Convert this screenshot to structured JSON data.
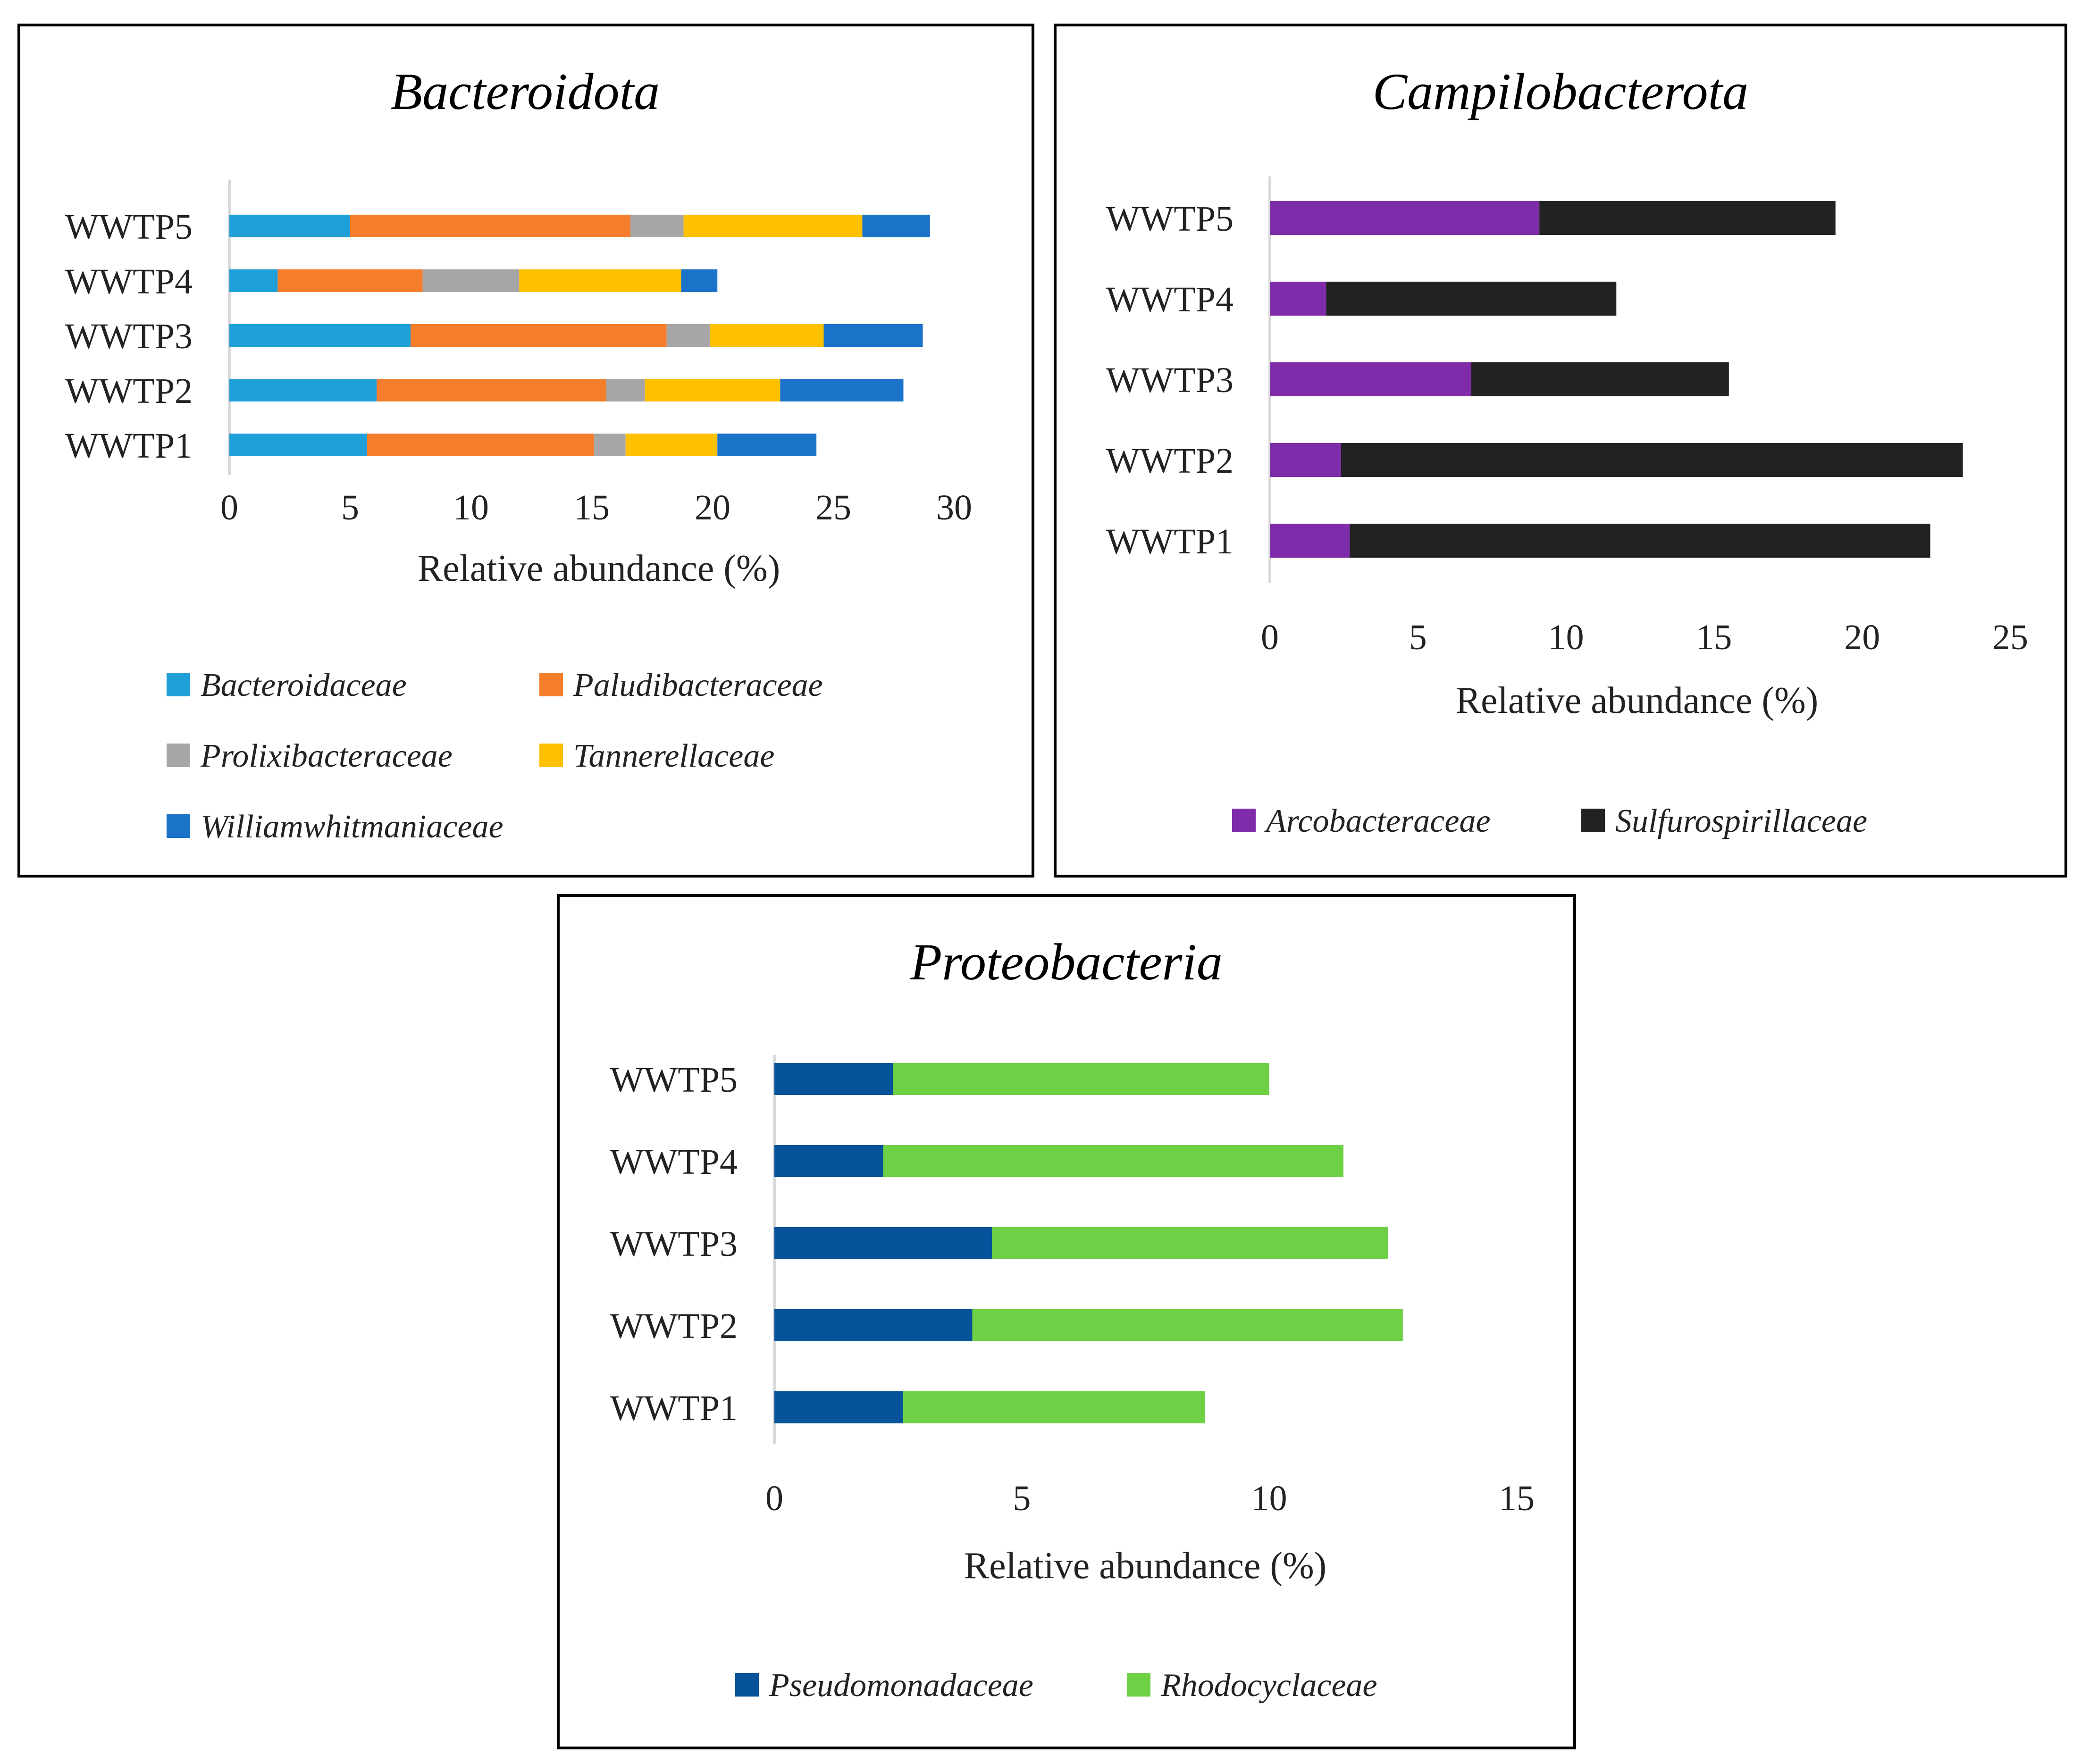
{
  "chart_data": [
    {
      "type": "bar",
      "orientation": "horizontal",
      "stacked": true,
      "title": "Bacteroidota",
      "categories": [
        "WWTP1",
        "WWTP2",
        "WWTP3",
        "WWTP4",
        "WWTP5"
      ],
      "series": [
        {
          "name": "Bacteroidaceae",
          "color": "#1f9fd8",
          "values": [
            5.7,
            6.1,
            7.5,
            2.0,
            5.0
          ]
        },
        {
          "name": "Paludibacteraceae",
          "color": "#f57e2c",
          "values": [
            9.4,
            9.5,
            10.6,
            6.0,
            11.6
          ]
        },
        {
          "name": "Prolixibacteraceae",
          "color": "#a6a6a6",
          "values": [
            1.3,
            1.6,
            1.8,
            4.0,
            2.2
          ]
        },
        {
          "name": "Tannerellaceae",
          "color": "#ffc000",
          "values": [
            3.8,
            5.6,
            4.7,
            6.7,
            7.4
          ]
        },
        {
          "name": "Williamwhitmaniaceae",
          "color": "#1a72c9",
          "values": [
            4.1,
            5.1,
            4.1,
            1.5,
            2.8
          ]
        }
      ],
      "xlabel": "Relative abundance (%)",
      "xlim": [
        0,
        30
      ],
      "xticks": [
        "0",
        "5",
        "10",
        "15",
        "20",
        "25",
        "30"
      ],
      "legend_position": "bottom"
    },
    {
      "type": "bar",
      "orientation": "horizontal",
      "stacked": true,
      "title": "Campilobacterota",
      "categories": [
        "WWTP1",
        "WWTP2",
        "WWTP3",
        "WWTP4",
        "WWTP5"
      ],
      "series": [
        {
          "name": "Arcobacteraceae",
          "color": "#7e2ca9",
          "values": [
            2.7,
            2.4,
            6.8,
            1.9,
            9.1
          ]
        },
        {
          "name": "Sulfurospirillaceae",
          "color": "#222222",
          "values": [
            19.6,
            21.0,
            8.7,
            9.8,
            10.0
          ]
        }
      ],
      "xlabel": "Relative abundance (%)",
      "xlim": [
        0,
        25
      ],
      "xticks": [
        "0",
        "5",
        "10",
        "15",
        "20",
        "25"
      ],
      "legend_position": "bottom"
    },
    {
      "type": "bar",
      "orientation": "horizontal",
      "stacked": true,
      "title": "Proteobacteria",
      "categories": [
        "WWTP1",
        "WWTP2",
        "WWTP3",
        "WWTP4",
        "WWTP5"
      ],
      "series": [
        {
          "name": "Pseudomonadaceae",
          "color": "#07539a",
          "values": [
            2.6,
            4.0,
            4.4,
            2.2,
            2.4
          ]
        },
        {
          "name": "Rhodocyclaceae",
          "color": "#6ed145",
          "values": [
            6.1,
            8.7,
            8.0,
            9.3,
            7.6
          ]
        }
      ],
      "xlabel": "Relative abundance (%)",
      "xlim": [
        0,
        15
      ],
      "xticks": [
        "0",
        "5",
        "10",
        "15"
      ],
      "legend_position": "bottom"
    }
  ]
}
